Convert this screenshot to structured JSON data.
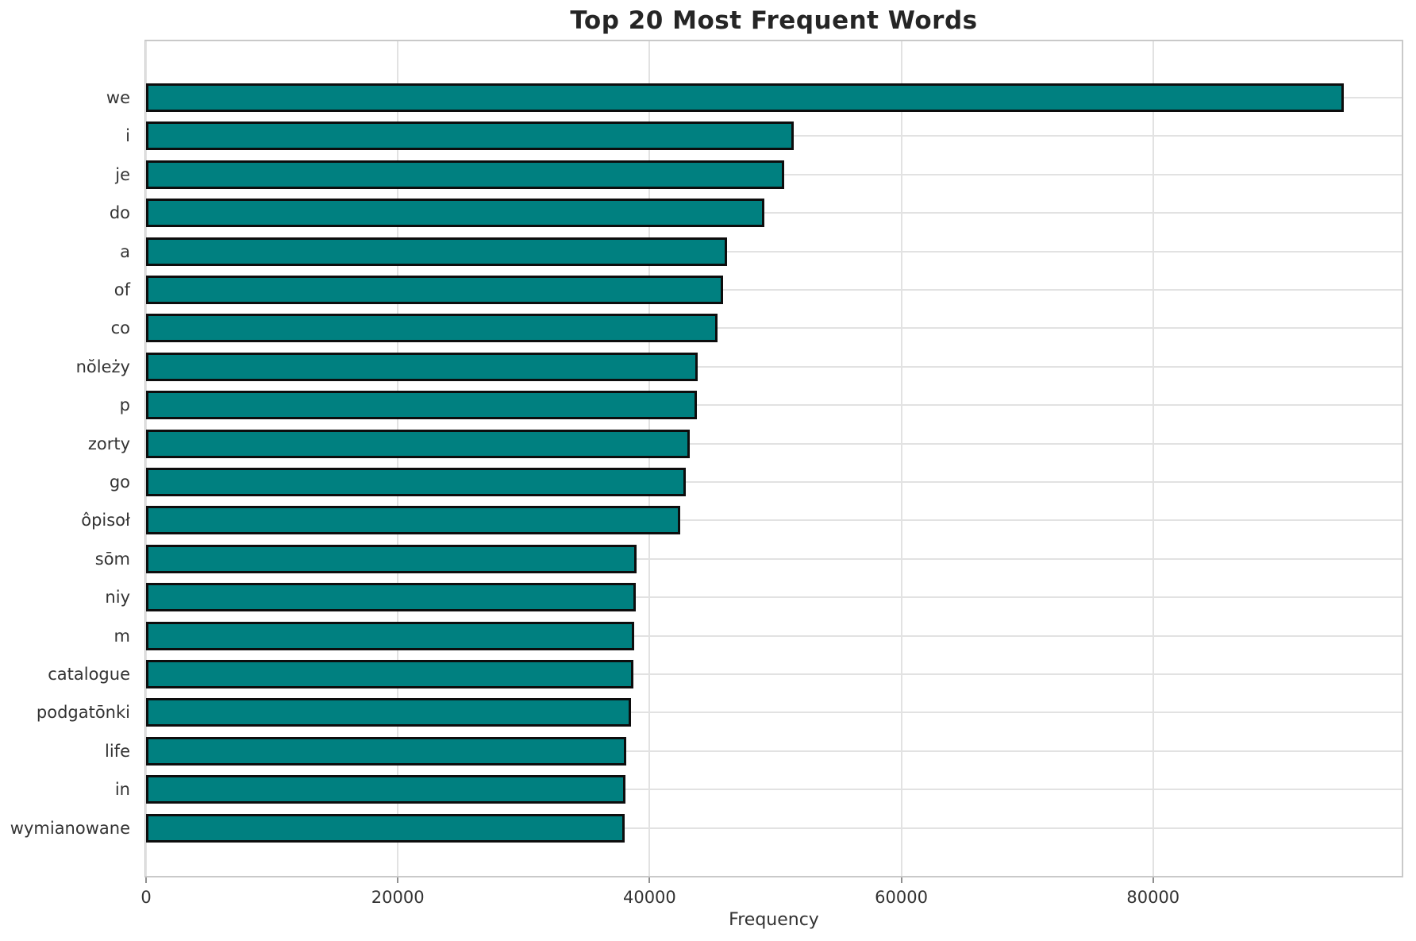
{
  "title": "Top 20 Most Frequent Words",
  "chart_data": {
    "type": "bar",
    "orientation": "horizontal",
    "title": "Top 20 Most Frequent Words",
    "xlabel": "Frequency",
    "ylabel": "",
    "categories": [
      "we",
      "i",
      "je",
      "do",
      "a",
      "of",
      "co",
      "nŏleży",
      "p",
      "zorty",
      "go",
      "ôpisoł",
      "sōm",
      "niy",
      "m",
      "catalogue",
      "podgatōnki",
      "life",
      "in",
      "wymianowane"
    ],
    "values": [
      95150,
      51450,
      50700,
      49100,
      46150,
      45850,
      45400,
      43850,
      43750,
      43200,
      42850,
      42450,
      38950,
      38900,
      38750,
      38700,
      38500,
      38150,
      38100,
      38050
    ],
    "xticks": [
      0,
      20000,
      40000,
      60000,
      80000
    ],
    "xlim": [
      0,
      99750
    ],
    "grid": true,
    "legend": false,
    "bar_color": "#008080",
    "bar_edge_color": "#0d0d0d",
    "grid_color": "#e2e2e2"
  }
}
